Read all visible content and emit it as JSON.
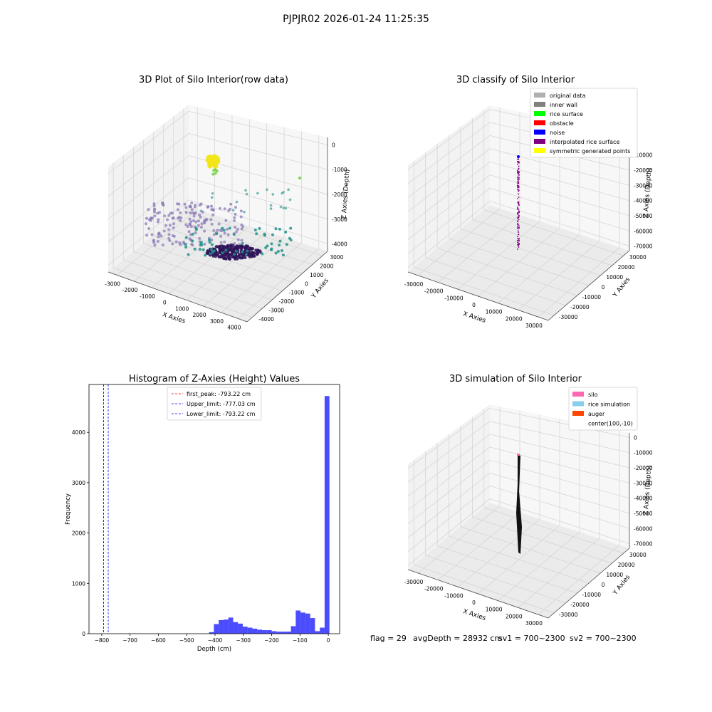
{
  "figure": {
    "title": "PJPJR02 2026-01-24 11:25:35",
    "footer": [
      "flag = 29",
      "avgDepth = 28932 cm",
      "sv1 = 700~2300",
      "sv2 = 700~2300"
    ]
  },
  "chart_data": [
    {
      "id": "raw",
      "type": "scatter",
      "title": "3D Plot of Silo Interior(row data)",
      "xlabel": "X Axies",
      "ylabel": "Y Axies",
      "zlabel": "Z Axies (Depth)",
      "x_ticks": [
        "-3000",
        "-2000",
        "-1000",
        "0",
        "1000",
        "2000",
        "3000",
        "4000"
      ],
      "y_ticks": [
        "-4000",
        "-3000",
        "-2000",
        "-1000",
        "0",
        "1000",
        "2000",
        "3000"
      ],
      "z_ticks": [
        "0",
        "-1000",
        "-2000",
        "-3000",
        "-4000"
      ],
      "colors": {
        "yellow": "#f2e51a",
        "green": "#7ad151",
        "teal": "#21918c",
        "lavender": "#8e7cb8",
        "dark": "#30145a"
      }
    },
    {
      "id": "classify",
      "type": "scatter",
      "title": "3D classify of Silo Interior",
      "xlabel": "X Axies",
      "ylabel": "Y Axies",
      "zlabel": "Z Axies (Depth)",
      "x_ticks": [
        "-30000",
        "-20000",
        "-10000",
        "0",
        "10000",
        "20000",
        "30000"
      ],
      "y_ticks": [
        "-30000",
        "-20000",
        "-10000",
        "0",
        "10000",
        "20000",
        "30000"
      ],
      "z_ticks": [
        "0",
        "-10000",
        "-20000",
        "-30000",
        "-40000",
        "-50000",
        "-60000",
        "-70000"
      ],
      "legend_position": "top-right",
      "legend": [
        {
          "label": "original data",
          "color": "#b0b0b0"
        },
        {
          "label": "inner wall",
          "color": "#808080"
        },
        {
          "label": "rice surface",
          "color": "#00ff00"
        },
        {
          "label": "obstacle",
          "color": "#ff0000"
        },
        {
          "label": "noise",
          "color": "#0000ff"
        },
        {
          "label": "interpolated rice surface",
          "color": "#800080"
        },
        {
          "label": "symmetric generated points",
          "color": "#ffff00"
        }
      ]
    },
    {
      "id": "histogram",
      "type": "bar",
      "title": "Histogram of Z-Axies (Height) Values",
      "xlabel": "Depth (cm)",
      "ylabel": "Frequency",
      "xlim": [
        -845,
        40
      ],
      "ylim": [
        0,
        4950
      ],
      "x_ticks": [
        -800,
        -700,
        -600,
        -500,
        -400,
        -300,
        -200,
        -100,
        0
      ],
      "y_ticks": [
        0,
        1000,
        2000,
        3000,
        4000
      ],
      "bar_color": "#0000ff",
      "bin_width": 17,
      "bin_starts": [
        -421,
        -404,
        -387,
        -370,
        -353,
        -336,
        -319,
        -302,
        -285,
        -268,
        -251,
        -234,
        -217,
        -200,
        -183,
        -166,
        -149,
        -132,
        -115,
        -98,
        -81,
        -64,
        -47,
        -30,
        -13
      ],
      "values": [
        30,
        190,
        270,
        280,
        320,
        230,
        200,
        140,
        120,
        100,
        80,
        70,
        70,
        50,
        40,
        40,
        40,
        150,
        460,
        420,
        400,
        310,
        50,
        120,
        4720
      ],
      "vlines": [
        {
          "label": "first_peak: -793.22 cm",
          "x": -793.22,
          "color": "#ff0000"
        },
        {
          "label": "Upper_limit: -777.03 cm",
          "x": -777.03,
          "color": "#0000ff"
        },
        {
          "label": "Lower_limit: -793.22 cm",
          "x": -793.22,
          "color": "#0000ff"
        }
      ],
      "legend_position": "top-center"
    },
    {
      "id": "simulation",
      "type": "surface",
      "title": "3D simulation of Silo Interior",
      "xlabel": "X Axies",
      "ylabel": "Y Axies",
      "zlabel": "Z Axies (Depth)",
      "x_ticks": [
        "-30000",
        "-20000",
        "-10000",
        "0",
        "10000",
        "20000",
        "30000"
      ],
      "y_ticks": [
        "-30000",
        "-20000",
        "-10000",
        "0",
        "10000",
        "20000",
        "30000"
      ],
      "z_ticks": [
        "0",
        "-10000",
        "-20000",
        "-30000",
        "-40000",
        "-50000",
        "-60000",
        "-70000"
      ],
      "legend_position": "top-right",
      "legend": [
        {
          "label": "silo",
          "color": "#ff69b4"
        },
        {
          "label": "rice simulation",
          "color": "#87ceeb"
        },
        {
          "label": "auger",
          "color": "#ff4500"
        },
        {
          "label": "center(100,-10)",
          "color": ""
        }
      ]
    }
  ]
}
